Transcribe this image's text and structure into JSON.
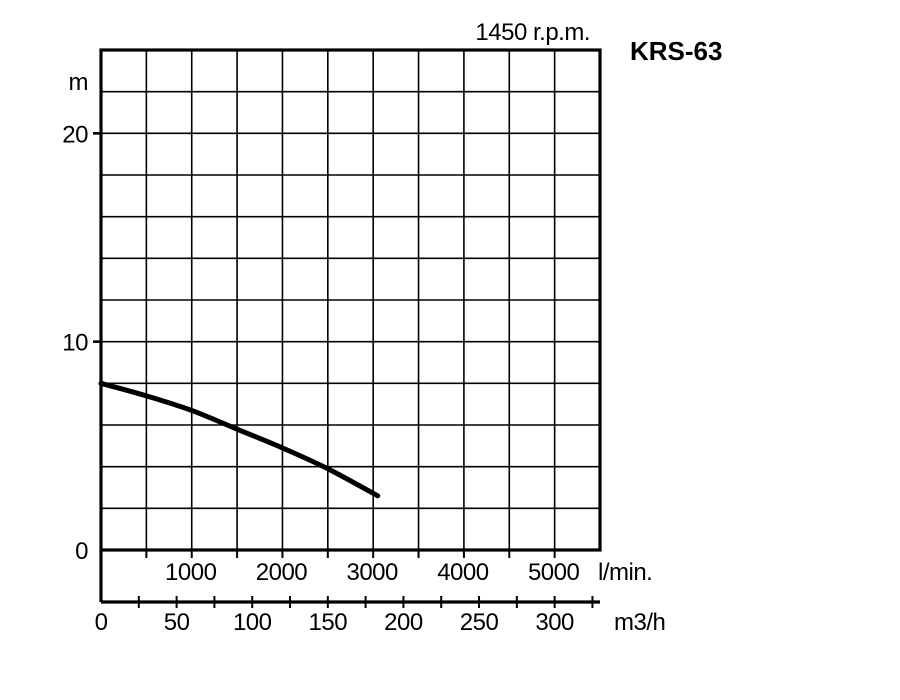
{
  "chart_data": {
    "type": "line",
    "title": "KRS-63",
    "subtitle": "1450 r.p.m.",
    "ylabel": "m",
    "xlabel_lmin": "l/min.",
    "xlabel_m3h": "m3/h",
    "ylim": [
      0,
      24
    ],
    "xlim_lmin": [
      0,
      5500
    ],
    "xlim_m3h": [
      0,
      330
    ],
    "y_ticks": [
      {
        "value": 0,
        "label": "0"
      },
      {
        "value": 10,
        "label": "10"
      },
      {
        "value": 20,
        "label": "20"
      }
    ],
    "x_ticks_lmin": [
      {
        "value": 1000,
        "label": "1000"
      },
      {
        "value": 2000,
        "label": "2000"
      },
      {
        "value": 3000,
        "label": "3000"
      },
      {
        "value": 4000,
        "label": "4000"
      },
      {
        "value": 5000,
        "label": "5000"
      }
    ],
    "x_ticks_m3h": [
      {
        "value": 0,
        "label": "0"
      },
      {
        "value": 50,
        "label": "50"
      },
      {
        "value": 100,
        "label": "100"
      },
      {
        "value": 150,
        "label": "150"
      },
      {
        "value": 200,
        "label": "200"
      },
      {
        "value": 250,
        "label": "250"
      },
      {
        "value": 300,
        "label": "300"
      }
    ],
    "grid": true,
    "series": [
      {
        "x_lmin": [
          0,
          500,
          1000,
          1500,
          2000,
          2500,
          3050
        ],
        "y": [
          8.0,
          7.4,
          6.7,
          5.8,
          4.9,
          3.9,
          2.6
        ]
      }
    ]
  }
}
